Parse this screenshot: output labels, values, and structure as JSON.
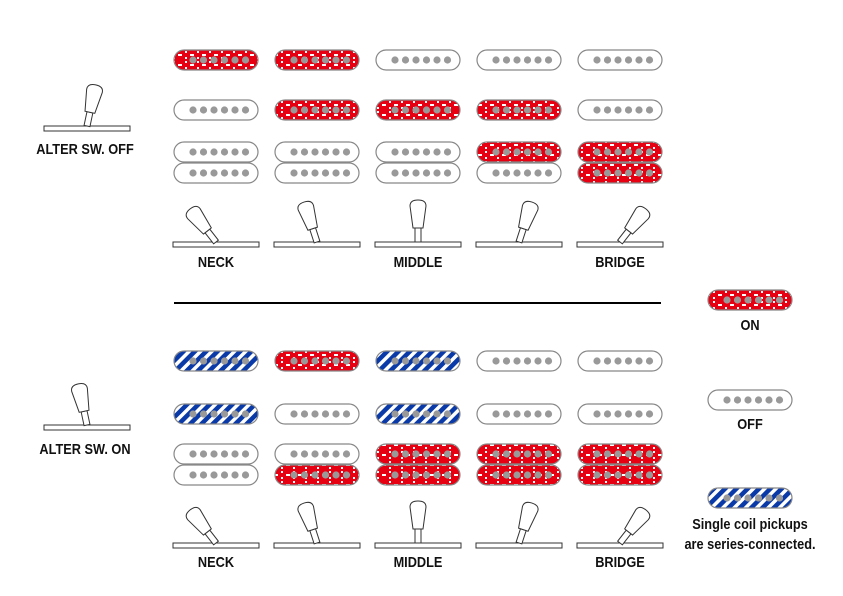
{
  "colors": {
    "on": "#e60012",
    "series": "#0a3aa8",
    "off": "#ffffff",
    "pole": "#999999"
  },
  "top": {
    "switch_label": "ALTER SW. OFF",
    "positions": [
      "NECK",
      "",
      "MIDDLE",
      "",
      "BRIDGE"
    ],
    "columns": [
      [
        "on",
        "off",
        "off",
        "off"
      ],
      [
        "on",
        "on",
        "off",
        "off"
      ],
      [
        "off",
        "on",
        "off",
        "off"
      ],
      [
        "off",
        "on",
        "on",
        "off"
      ],
      [
        "off",
        "off",
        "on",
        "on"
      ]
    ]
  },
  "bottom": {
    "switch_label": "ALTER SW. ON",
    "positions": [
      "NECK",
      "",
      "MIDDLE",
      "",
      "BRIDGE"
    ],
    "columns": [
      [
        "series",
        "series",
        "off",
        "off"
      ],
      [
        "on",
        "off",
        "off",
        "on"
      ],
      [
        "series",
        "series",
        "on",
        "on"
      ],
      [
        "off",
        "off",
        "on",
        "on"
      ],
      [
        "off",
        "off",
        "on",
        "on"
      ]
    ]
  },
  "legend": {
    "on": "ON",
    "off": "OFF",
    "series_line1": "Single coil pickups",
    "series_line2": "are series-connected."
  }
}
